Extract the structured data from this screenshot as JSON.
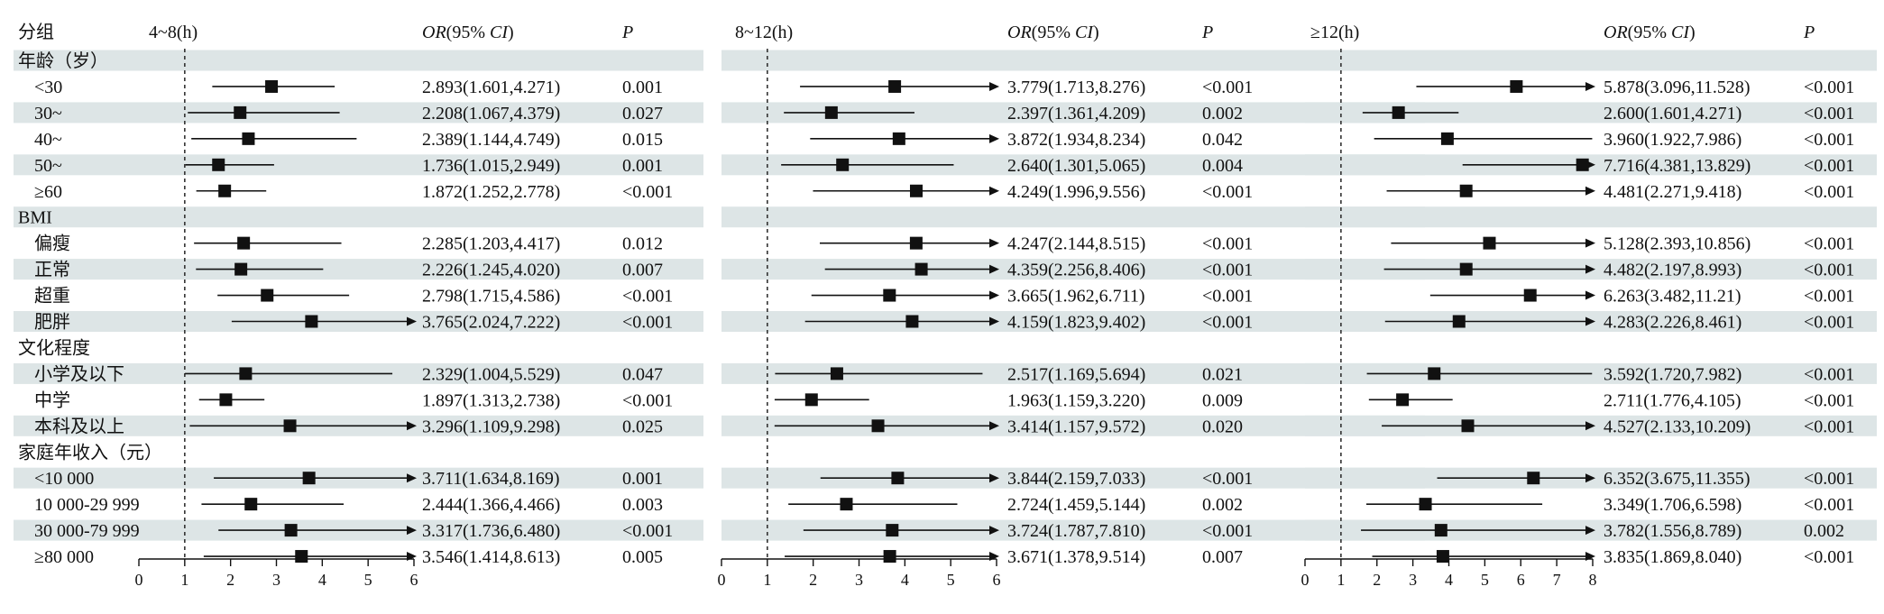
{
  "header": {
    "group_label": "分组",
    "or_label_it": "OR",
    "or_label_mid": "(95% ",
    "ci_label_it": "CI",
    "or_label_end": ")",
    "p_label": "P"
  },
  "colors": {
    "shade": "#dde5e6",
    "marker": "#111111",
    "line": "#111111",
    "reference_line": "#333333"
  },
  "rows": [
    {
      "label": "年龄（岁）",
      "type": "category"
    },
    {
      "label": "<30",
      "type": "item"
    },
    {
      "label": "30~",
      "type": "item"
    },
    {
      "label": "40~",
      "type": "item"
    },
    {
      "label": "50~",
      "type": "item"
    },
    {
      "label": "≥60",
      "type": "item"
    },
    {
      "label": "BMI",
      "type": "category"
    },
    {
      "label": "偏瘦",
      "type": "item"
    },
    {
      "label": "正常",
      "type": "item"
    },
    {
      "label": "超重",
      "type": "item"
    },
    {
      "label": "肥胖",
      "type": "item"
    },
    {
      "label": "文化程度",
      "type": "category"
    },
    {
      "label": "小学及以下",
      "type": "item"
    },
    {
      "label": "中学",
      "type": "item"
    },
    {
      "label": "本科及以上",
      "type": "item"
    },
    {
      "label": "家庭年收入（元）",
      "type": "category"
    },
    {
      "label": "<10 000",
      "type": "item"
    },
    {
      "label": "10 000-29 999",
      "type": "item"
    },
    {
      "label": "30 000-79 999",
      "type": "item"
    },
    {
      "label": "≥80 000",
      "type": "item"
    }
  ],
  "chart_data": [
    {
      "type": "forest",
      "title": "4~8(h)",
      "xlim": [
        0,
        6
      ],
      "xticks": [
        "0",
        "1",
        "2",
        "3",
        "4",
        "5",
        "6"
      ],
      "reference": 1,
      "points": [
        null,
        {
          "or": 2.893,
          "lo": 1.601,
          "hi": 4.271,
          "text": "2.893(1.601,4.271)",
          "p": "0.001"
        },
        {
          "or": 2.208,
          "lo": 1.067,
          "hi": 4.379,
          "text": "2.208(1.067,4.379)",
          "p": "0.027"
        },
        {
          "or": 2.389,
          "lo": 1.144,
          "hi": 4.749,
          "text": "2.389(1.144,4.749)",
          "p": "0.015"
        },
        {
          "or": 1.736,
          "lo": 1.015,
          "hi": 2.949,
          "text": "1.736(1.015,2.949)",
          "p": "0.001"
        },
        {
          "or": 1.872,
          "lo": 1.252,
          "hi": 2.778,
          "text": "1.872(1.252,2.778)",
          "p": "<0.001"
        },
        null,
        {
          "or": 2.285,
          "lo": 1.203,
          "hi": 4.417,
          "text": "2.285(1.203,4.417)",
          "p": "0.012"
        },
        {
          "or": 2.226,
          "lo": 1.245,
          "hi": 4.02,
          "text": "2.226(1.245,4.020)",
          "p": "0.007"
        },
        {
          "or": 2.798,
          "lo": 1.715,
          "hi": 4.586,
          "text": "2.798(1.715,4.586)",
          "p": "<0.001"
        },
        {
          "or": 3.765,
          "lo": 2.024,
          "hi": 7.222,
          "text": "3.765(2.024,7.222)",
          "p": "<0.001"
        },
        null,
        {
          "or": 2.329,
          "lo": 1.004,
          "hi": 5.529,
          "text": "2.329(1.004,5.529)",
          "p": "0.047"
        },
        {
          "or": 1.897,
          "lo": 1.313,
          "hi": 2.738,
          "text": "1.897(1.313,2.738)",
          "p": "<0.001"
        },
        {
          "or": 3.296,
          "lo": 1.109,
          "hi": 9.298,
          "text": "3.296(1.109,9.298)",
          "p": "0.025"
        },
        null,
        {
          "or": 3.711,
          "lo": 1.634,
          "hi": 8.169,
          "text": "3.711(1.634,8.169)",
          "p": "0.001"
        },
        {
          "or": 2.444,
          "lo": 1.366,
          "hi": 4.466,
          "text": "2.444(1.366,4.466)",
          "p": "0.003"
        },
        {
          "or": 3.317,
          "lo": 1.736,
          "hi": 6.48,
          "text": "3.317(1.736,6.480)",
          "p": "<0.001"
        },
        {
          "or": 3.546,
          "lo": 1.414,
          "hi": 8.613,
          "text": "3.546(1.414,8.613)",
          "p": "0.005"
        }
      ]
    },
    {
      "type": "forest",
      "title": "8~12(h)",
      "xlim": [
        0,
        6
      ],
      "xticks": [
        "0",
        "1",
        "2",
        "3",
        "4",
        "5",
        "6"
      ],
      "reference": 1,
      "points": [
        null,
        {
          "or": 3.779,
          "lo": 1.713,
          "hi": 8.276,
          "text": "3.779(1.713,8.276)",
          "p": "<0.001"
        },
        {
          "or": 2.397,
          "lo": 1.361,
          "hi": 4.209,
          "text": "2.397(1.361,4.209)",
          "p": "0.002"
        },
        {
          "or": 3.872,
          "lo": 1.934,
          "hi": 8.234,
          "text": "3.872(1.934,8.234)",
          "p": "0.042"
        },
        {
          "or": 2.64,
          "lo": 1.301,
          "hi": 5.065,
          "text": "2.640(1.301,5.065)",
          "p": "0.004"
        },
        {
          "or": 4.249,
          "lo": 1.996,
          "hi": 9.556,
          "text": "4.249(1.996,9.556)",
          "p": "<0.001"
        },
        null,
        {
          "or": 4.247,
          "lo": 2.144,
          "hi": 8.515,
          "text": "4.247(2.144,8.515)",
          "p": "<0.001"
        },
        {
          "or": 4.359,
          "lo": 2.256,
          "hi": 8.406,
          "text": "4.359(2.256,8.406)",
          "p": "<0.001"
        },
        {
          "or": 3.665,
          "lo": 1.962,
          "hi": 6.711,
          "text": "3.665(1.962,6.711)",
          "p": "<0.001"
        },
        {
          "or": 4.159,
          "lo": 1.823,
          "hi": 9.402,
          "text": "4.159(1.823,9.402)",
          "p": "<0.001"
        },
        null,
        {
          "or": 2.517,
          "lo": 1.169,
          "hi": 5.694,
          "text": "2.517(1.169,5.694)",
          "p": "0.021"
        },
        {
          "or": 1.963,
          "lo": 1.159,
          "hi": 3.22,
          "text": "1.963(1.159,3.220)",
          "p": "0.009"
        },
        {
          "or": 3.414,
          "lo": 1.157,
          "hi": 9.572,
          "text": "3.414(1.157,9.572)",
          "p": "0.020"
        },
        null,
        {
          "or": 3.844,
          "lo": 2.159,
          "hi": 7.033,
          "text": "3.844(2.159,7.033)",
          "p": "<0.001"
        },
        {
          "or": 2.724,
          "lo": 1.459,
          "hi": 5.144,
          "text": "2.724(1.459,5.144)",
          "p": "0.002"
        },
        {
          "or": 3.724,
          "lo": 1.787,
          "hi": 7.81,
          "text": "3.724(1.787,7.810)",
          "p": "<0.001"
        },
        {
          "or": 3.671,
          "lo": 1.378,
          "hi": 9.514,
          "text": "3.671(1.378,9.514)",
          "p": "0.007"
        }
      ]
    },
    {
      "type": "forest",
      "title": "≥12(h)",
      "xlim": [
        0,
        8
      ],
      "xticks": [
        "0",
        "1",
        "2",
        "3",
        "4",
        "5",
        "6",
        "7",
        "8"
      ],
      "reference": 1,
      "points": [
        null,
        {
          "or": 5.878,
          "lo": 3.096,
          "hi": 11.528,
          "text": "5.878(3.096,11.528)",
          "p": "<0.001"
        },
        {
          "or": 2.6,
          "lo": 1.601,
          "hi": 4.271,
          "text": "2.600(1.601,4.271)",
          "p": "<0.001"
        },
        {
          "or": 3.96,
          "lo": 1.922,
          "hi": 7.986,
          "text": "3.960(1.922,7.986)",
          "p": "<0.001"
        },
        {
          "or": 7.716,
          "lo": 4.381,
          "hi": 13.829,
          "text": "7.716(4.381,13.829)",
          "p": "<0.001"
        },
        {
          "or": 4.481,
          "lo": 2.271,
          "hi": 9.418,
          "text": "4.481(2.271,9.418)",
          "p": "<0.001"
        },
        null,
        {
          "or": 5.128,
          "lo": 2.393,
          "hi": 10.856,
          "text": "5.128(2.393,10.856)",
          "p": "<0.001"
        },
        {
          "or": 4.482,
          "lo": 2.197,
          "hi": 8.993,
          "text": "4.482(2.197,8.993)",
          "p": "<0.001"
        },
        {
          "or": 6.263,
          "lo": 3.482,
          "hi": 11.21,
          "text": "6.263(3.482,11.21)",
          "p": "<0.001"
        },
        {
          "or": 4.283,
          "lo": 2.226,
          "hi": 8.461,
          "text": "4.283(2.226,8.461)",
          "p": "<0.001"
        },
        null,
        {
          "or": 3.592,
          "lo": 1.72,
          "hi": 7.982,
          "text": "3.592(1.720,7.982)",
          "p": "<0.001"
        },
        {
          "or": 2.711,
          "lo": 1.776,
          "hi": 4.105,
          "text": "2.711(1.776,4.105)",
          "p": "<0.001"
        },
        {
          "or": 4.527,
          "lo": 2.133,
          "hi": 10.209,
          "text": "4.527(2.133,10.209)",
          "p": "<0.001"
        },
        null,
        {
          "or": 6.352,
          "lo": 3.675,
          "hi": 11.355,
          "text": "6.352(3.675,11.355)",
          "p": "<0.001"
        },
        {
          "or": 3.349,
          "lo": 1.706,
          "hi": 6.598,
          "text": "3.349(1.706,6.598)",
          "p": "<0.001"
        },
        {
          "or": 3.782,
          "lo": 1.556,
          "hi": 8.789,
          "text": "3.782(1.556,8.789)",
          "p": "0.002"
        },
        {
          "or": 3.835,
          "lo": 1.869,
          "hi": 8.04,
          "text": "3.835(1.869,8.040)",
          "p": "<0.001"
        }
      ]
    }
  ]
}
